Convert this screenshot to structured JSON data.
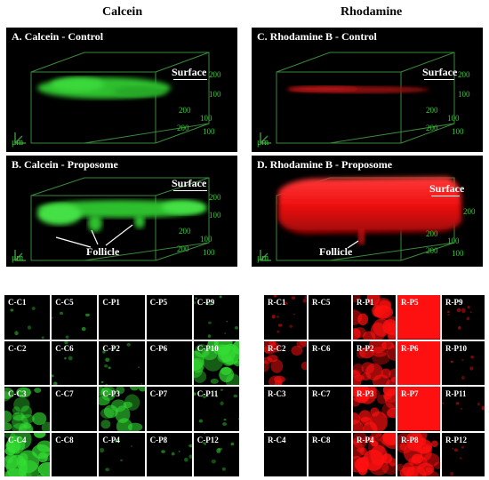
{
  "columns": {
    "left": {
      "title": "Calcein"
    },
    "right": {
      "title": "Rhodamine"
    }
  },
  "panels": {
    "A": {
      "label": "A. Calcein - Control",
      "surface": "Surface"
    },
    "B": {
      "label": "B. Calcein - Proposome",
      "surface": "Surface",
      "follicle": "Follicle"
    },
    "C": {
      "label": "C. Rhodamine B - Control",
      "surface": "Surface"
    },
    "D": {
      "label": "D. Rhodamine B - Proposome",
      "surface": "Surface",
      "follicle": "Follicle"
    }
  },
  "axes": {
    "unit": "μm",
    "t200": "200",
    "t100": "100"
  },
  "colors": {
    "calcein": "#33dd33",
    "rhodamine": "#ff1010",
    "box": "#3a8a3a"
  },
  "calcein_grid": [
    {
      "label": "C-C1",
      "intensity": 0.05
    },
    {
      "label": "C-C5",
      "intensity": 0.05
    },
    {
      "label": "C-P1",
      "intensity": 0.0
    },
    {
      "label": "C-P5",
      "intensity": 0.0
    },
    {
      "label": "C-P9",
      "intensity": 0.25
    },
    {
      "label": "C-C2",
      "intensity": 0.0
    },
    {
      "label": "C-C6",
      "intensity": 0.05
    },
    {
      "label": "C-P2",
      "intensity": 0.25
    },
    {
      "label": "C-P6",
      "intensity": 0.0
    },
    {
      "label": "C-P10",
      "intensity": 0.8
    },
    {
      "label": "C-C3",
      "intensity": 0.6
    },
    {
      "label": "C-C7",
      "intensity": 0.0
    },
    {
      "label": "C-P3",
      "intensity": 0.5
    },
    {
      "label": "C-P7",
      "intensity": 0.0
    },
    {
      "label": "C-P11",
      "intensity": 0.25
    },
    {
      "label": "C-C4",
      "intensity": 0.85
    },
    {
      "label": "C-C8",
      "intensity": 0.0
    },
    {
      "label": "C-P4",
      "intensity": 0.05
    },
    {
      "label": "C-P8",
      "intensity": 0.1
    },
    {
      "label": "C-P12",
      "intensity": 0.15
    }
  ],
  "rhodamine_grid": [
    {
      "label": "R-C1",
      "intensity": 0.3
    },
    {
      "label": "R-C5",
      "intensity": 0.0
    },
    {
      "label": "R-P1",
      "intensity": 0.75
    },
    {
      "label": "R-P5",
      "intensity": 1.0
    },
    {
      "label": "R-P9",
      "intensity": 0.15
    },
    {
      "label": "R-C2",
      "intensity": 0.45
    },
    {
      "label": "R-C6",
      "intensity": 0.0
    },
    {
      "label": "R-P2",
      "intensity": 0.65
    },
    {
      "label": "R-P6",
      "intensity": 1.0
    },
    {
      "label": "R-P10",
      "intensity": 0.05
    },
    {
      "label": "R-C3",
      "intensity": 0.0
    },
    {
      "label": "R-C7",
      "intensity": 0.0
    },
    {
      "label": "R-P3",
      "intensity": 0.8
    },
    {
      "label": "R-P7",
      "intensity": 1.0
    },
    {
      "label": "R-P11",
      "intensity": 0.05
    },
    {
      "label": "R-C4",
      "intensity": 0.0
    },
    {
      "label": "R-C8",
      "intensity": 0.0
    },
    {
      "label": "R-P4",
      "intensity": 0.9
    },
    {
      "label": "R-P8",
      "intensity": 0.85
    },
    {
      "label": "R-P12",
      "intensity": 0.05
    }
  ]
}
